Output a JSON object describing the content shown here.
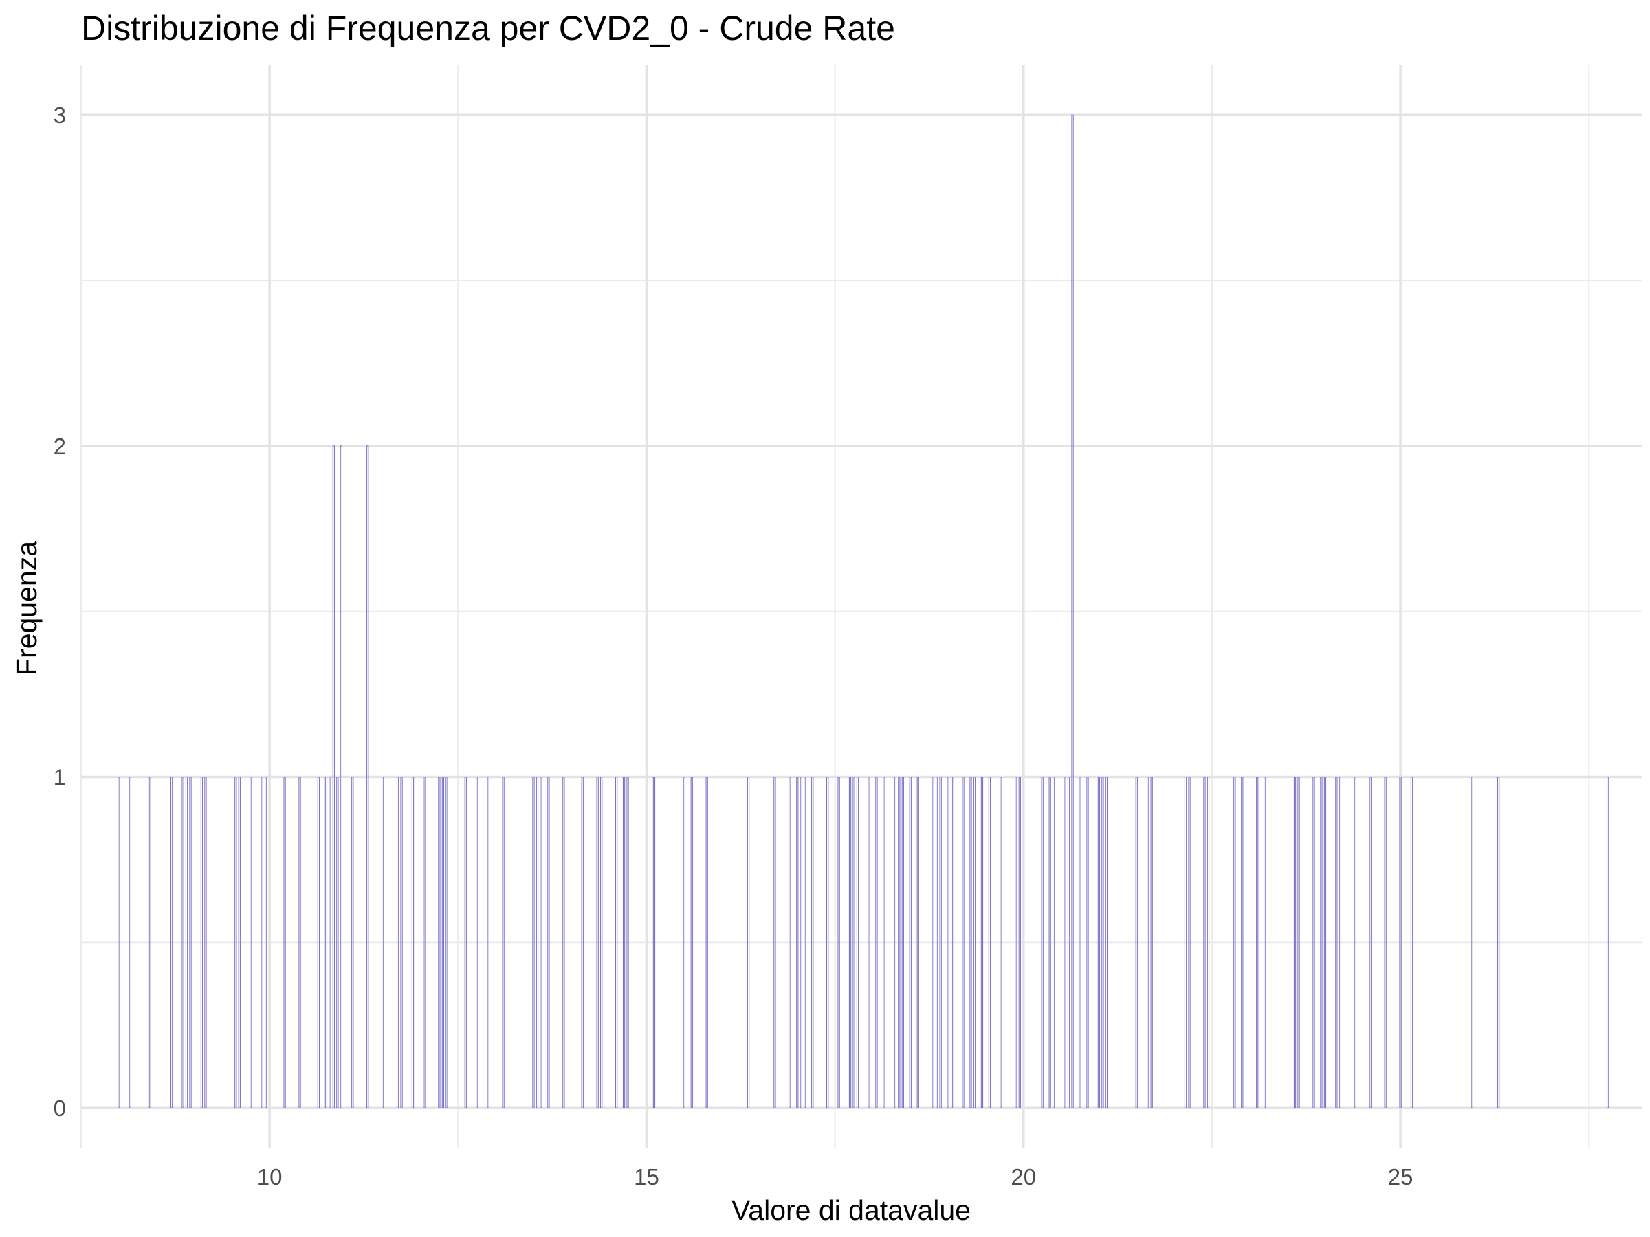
{
  "chart_data": {
    "type": "bar",
    "title": "Distribuzione di Frequenza per CVD2_0 - Crude Rate",
    "xlabel": "Valore di datavalue",
    "ylabel": "Frequenza",
    "xlim": [
      7.5,
      28.2
    ],
    "ylim": [
      -0.12,
      3.15
    ],
    "x_ticks": [
      10,
      15,
      20,
      25
    ],
    "y_ticks": [
      0,
      1,
      2,
      3
    ],
    "grid": true,
    "bar_color": "#7b74c9",
    "bar_width": 0.02,
    "bars": [
      {
        "x": 8.0,
        "y": 1
      },
      {
        "x": 8.15,
        "y": 1
      },
      {
        "x": 8.4,
        "y": 1
      },
      {
        "x": 8.7,
        "y": 1
      },
      {
        "x": 8.85,
        "y": 1
      },
      {
        "x": 8.9,
        "y": 1
      },
      {
        "x": 8.95,
        "y": 1
      },
      {
        "x": 9.1,
        "y": 1
      },
      {
        "x": 9.15,
        "y": 1
      },
      {
        "x": 9.55,
        "y": 1
      },
      {
        "x": 9.6,
        "y": 1
      },
      {
        "x": 9.75,
        "y": 1
      },
      {
        "x": 9.9,
        "y": 1
      },
      {
        "x": 9.95,
        "y": 1
      },
      {
        "x": 10.2,
        "y": 1
      },
      {
        "x": 10.4,
        "y": 1
      },
      {
        "x": 10.65,
        "y": 1
      },
      {
        "x": 10.75,
        "y": 1
      },
      {
        "x": 10.8,
        "y": 1
      },
      {
        "x": 10.85,
        "y": 2
      },
      {
        "x": 10.9,
        "y": 1
      },
      {
        "x": 10.95,
        "y": 2
      },
      {
        "x": 11.1,
        "y": 1
      },
      {
        "x": 11.3,
        "y": 2
      },
      {
        "x": 11.5,
        "y": 1
      },
      {
        "x": 11.7,
        "y": 1
      },
      {
        "x": 11.75,
        "y": 1
      },
      {
        "x": 11.9,
        "y": 1
      },
      {
        "x": 12.05,
        "y": 1
      },
      {
        "x": 12.25,
        "y": 1
      },
      {
        "x": 12.3,
        "y": 1
      },
      {
        "x": 12.35,
        "y": 1
      },
      {
        "x": 12.6,
        "y": 1
      },
      {
        "x": 12.75,
        "y": 1
      },
      {
        "x": 12.9,
        "y": 1
      },
      {
        "x": 13.1,
        "y": 1
      },
      {
        "x": 13.5,
        "y": 1
      },
      {
        "x": 13.55,
        "y": 1
      },
      {
        "x": 13.6,
        "y": 1
      },
      {
        "x": 13.7,
        "y": 1
      },
      {
        "x": 13.9,
        "y": 1
      },
      {
        "x": 14.15,
        "y": 1
      },
      {
        "x": 14.35,
        "y": 1
      },
      {
        "x": 14.4,
        "y": 1
      },
      {
        "x": 14.6,
        "y": 1
      },
      {
        "x": 14.7,
        "y": 1
      },
      {
        "x": 14.75,
        "y": 1
      },
      {
        "x": 15.1,
        "y": 1
      },
      {
        "x": 15.5,
        "y": 1
      },
      {
        "x": 15.6,
        "y": 1
      },
      {
        "x": 15.8,
        "y": 1
      },
      {
        "x": 16.35,
        "y": 1
      },
      {
        "x": 16.7,
        "y": 1
      },
      {
        "x": 16.9,
        "y": 1
      },
      {
        "x": 17.0,
        "y": 1
      },
      {
        "x": 17.05,
        "y": 1
      },
      {
        "x": 17.1,
        "y": 1
      },
      {
        "x": 17.2,
        "y": 1
      },
      {
        "x": 17.4,
        "y": 1
      },
      {
        "x": 17.55,
        "y": 1
      },
      {
        "x": 17.7,
        "y": 1
      },
      {
        "x": 17.75,
        "y": 1
      },
      {
        "x": 17.8,
        "y": 1
      },
      {
        "x": 17.95,
        "y": 1
      },
      {
        "x": 18.05,
        "y": 1
      },
      {
        "x": 18.15,
        "y": 1
      },
      {
        "x": 18.3,
        "y": 1
      },
      {
        "x": 18.35,
        "y": 1
      },
      {
        "x": 18.4,
        "y": 1
      },
      {
        "x": 18.5,
        "y": 1
      },
      {
        "x": 18.6,
        "y": 1
      },
      {
        "x": 18.8,
        "y": 1
      },
      {
        "x": 18.85,
        "y": 1
      },
      {
        "x": 18.9,
        "y": 1
      },
      {
        "x": 19.0,
        "y": 1
      },
      {
        "x": 19.05,
        "y": 1
      },
      {
        "x": 19.2,
        "y": 1
      },
      {
        "x": 19.3,
        "y": 1
      },
      {
        "x": 19.35,
        "y": 1
      },
      {
        "x": 19.45,
        "y": 1
      },
      {
        "x": 19.55,
        "y": 1
      },
      {
        "x": 19.7,
        "y": 1
      },
      {
        "x": 19.9,
        "y": 1
      },
      {
        "x": 19.95,
        "y": 1
      },
      {
        "x": 20.25,
        "y": 1
      },
      {
        "x": 20.35,
        "y": 1
      },
      {
        "x": 20.4,
        "y": 1
      },
      {
        "x": 20.55,
        "y": 1
      },
      {
        "x": 20.6,
        "y": 1
      },
      {
        "x": 20.65,
        "y": 3
      },
      {
        "x": 20.75,
        "y": 1
      },
      {
        "x": 20.85,
        "y": 1
      },
      {
        "x": 21.0,
        "y": 1
      },
      {
        "x": 21.05,
        "y": 1
      },
      {
        "x": 21.1,
        "y": 1
      },
      {
        "x": 21.5,
        "y": 1
      },
      {
        "x": 21.65,
        "y": 1
      },
      {
        "x": 21.7,
        "y": 1
      },
      {
        "x": 22.15,
        "y": 1
      },
      {
        "x": 22.2,
        "y": 1
      },
      {
        "x": 22.4,
        "y": 1
      },
      {
        "x": 22.45,
        "y": 1
      },
      {
        "x": 22.8,
        "y": 1
      },
      {
        "x": 22.9,
        "y": 1
      },
      {
        "x": 23.1,
        "y": 1
      },
      {
        "x": 23.2,
        "y": 1
      },
      {
        "x": 23.6,
        "y": 1
      },
      {
        "x": 23.65,
        "y": 1
      },
      {
        "x": 23.85,
        "y": 1
      },
      {
        "x": 23.95,
        "y": 1
      },
      {
        "x": 24.0,
        "y": 1
      },
      {
        "x": 24.15,
        "y": 1
      },
      {
        "x": 24.2,
        "y": 1
      },
      {
        "x": 24.4,
        "y": 1
      },
      {
        "x": 24.6,
        "y": 1
      },
      {
        "x": 24.8,
        "y": 1
      },
      {
        "x": 25.0,
        "y": 1
      },
      {
        "x": 25.15,
        "y": 1
      },
      {
        "x": 25.95,
        "y": 1
      },
      {
        "x": 26.3,
        "y": 1
      },
      {
        "x": 27.75,
        "y": 1
      }
    ]
  }
}
